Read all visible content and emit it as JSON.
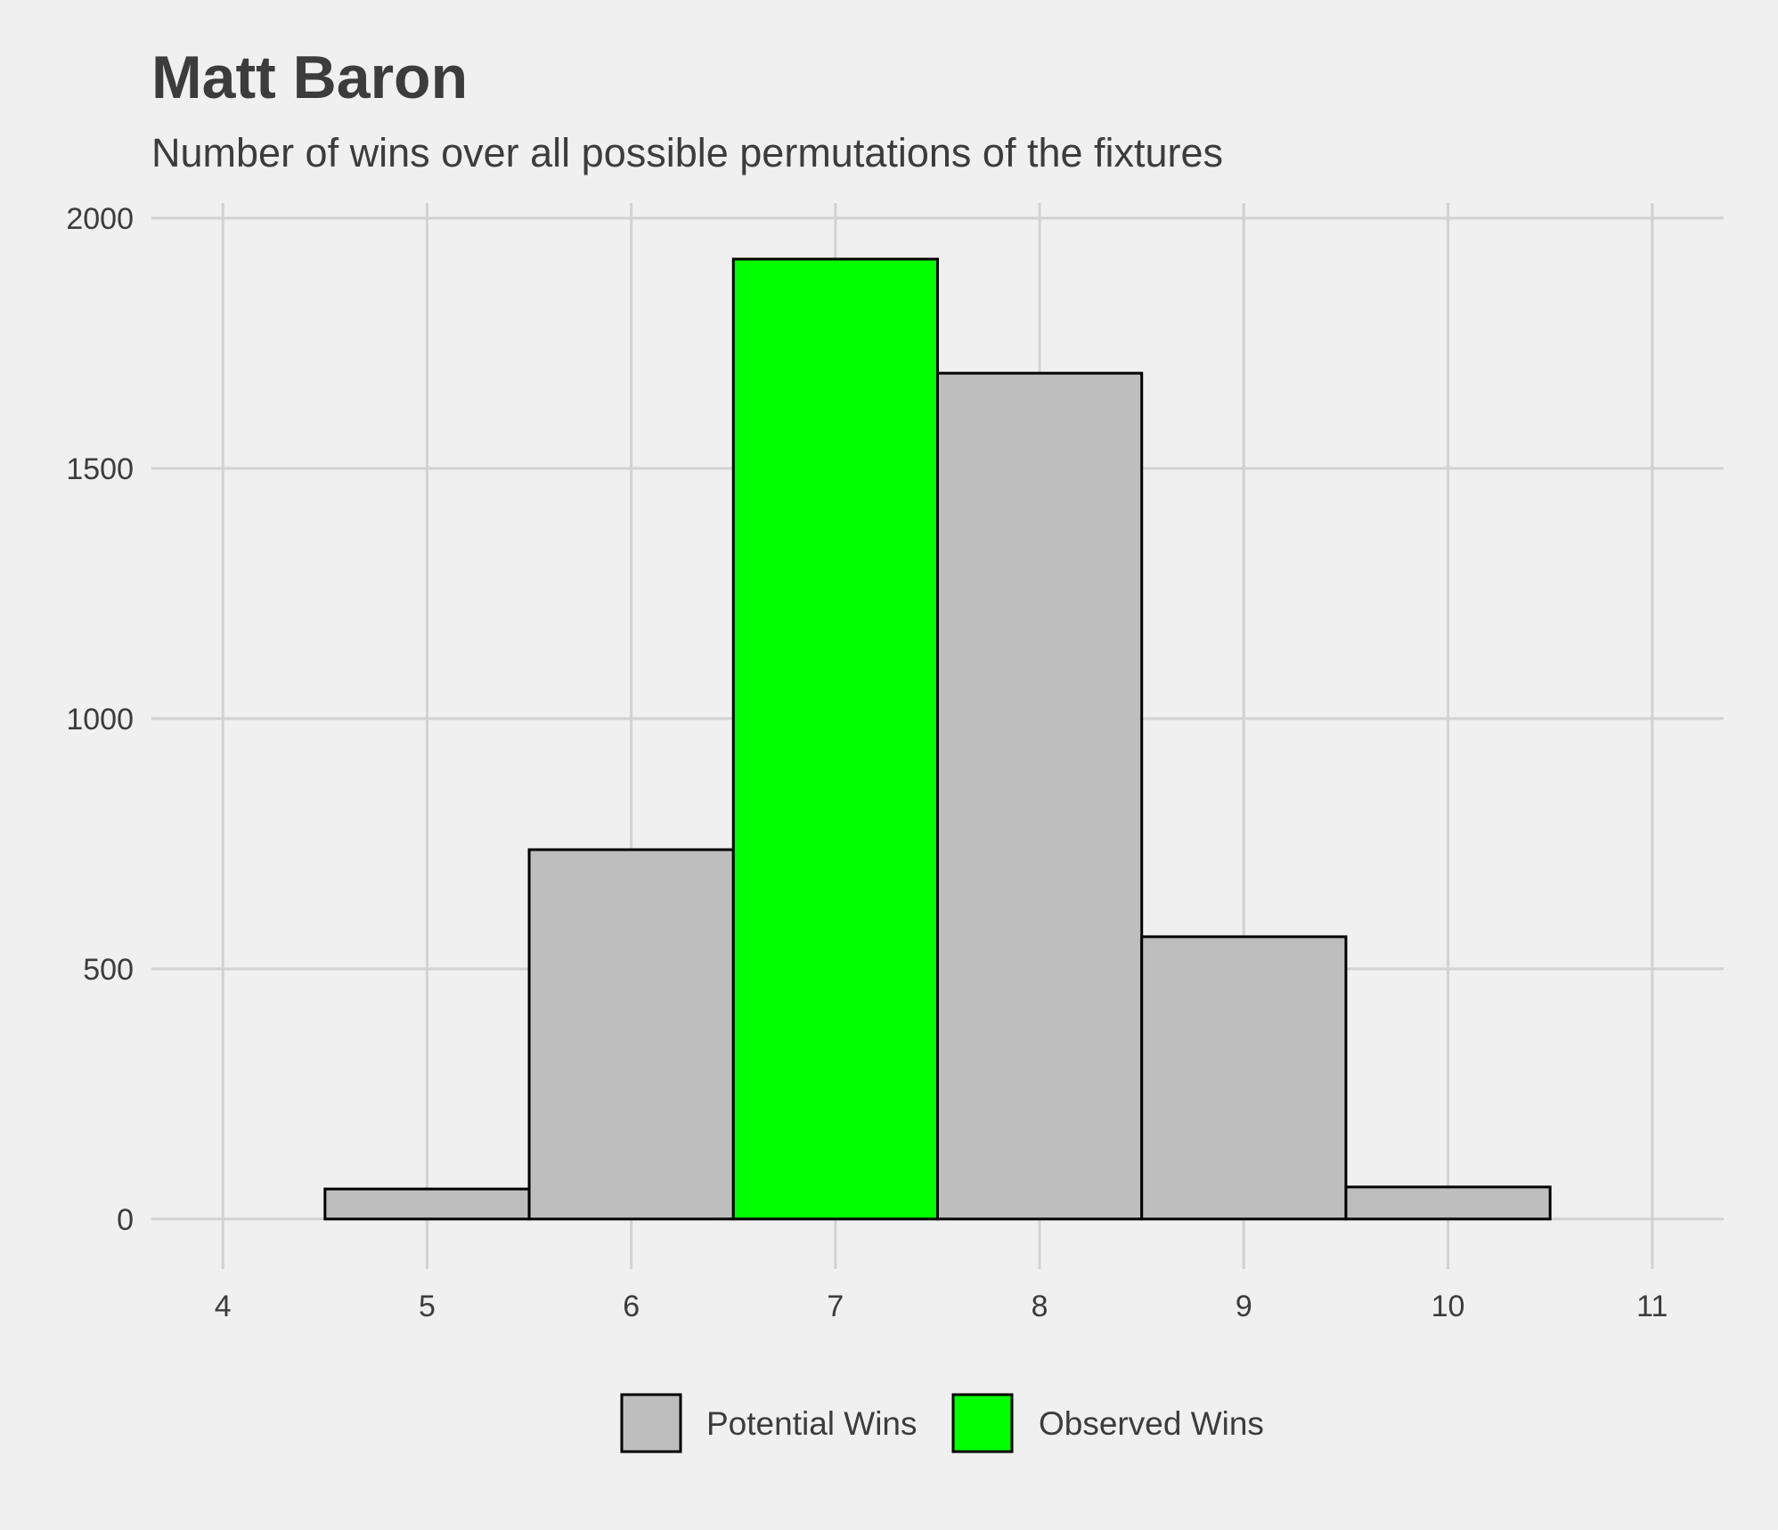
{
  "chart_data": {
    "type": "bar",
    "title": "Matt Baron",
    "subtitle": "Number of wins over all possible permutations of the fixtures",
    "x": [
      5,
      6,
      7,
      8,
      9,
      10
    ],
    "values": [
      60,
      738,
      1918,
      1690,
      564,
      64
    ],
    "series_of_bar": [
      "Potential Wins",
      "Potential Wins",
      "Observed Wins",
      "Potential Wins",
      "Potential Wins",
      "Potential Wins"
    ],
    "xlim": [
      3.65,
      11.35
    ],
    "ylim": [
      -100,
      2030
    ],
    "xticks": [
      4,
      5,
      6,
      7,
      8,
      9,
      10,
      11
    ],
    "yticks": [
      0,
      500,
      1000,
      1500,
      2000
    ],
    "xlabel": "",
    "ylabel": "",
    "grid": true,
    "legend": {
      "position": "bottom",
      "entries": [
        {
          "label": "Potential Wins",
          "color": "#bebebe"
        },
        {
          "label": "Observed Wins",
          "color": "#00ff00"
        }
      ]
    },
    "colors": {
      "Potential Wins": "#bebebe",
      "Observed Wins": "#00ff00",
      "bar_outline": "#000000",
      "grid": "#d2d2d2",
      "background": "#f0f0f0"
    }
  }
}
